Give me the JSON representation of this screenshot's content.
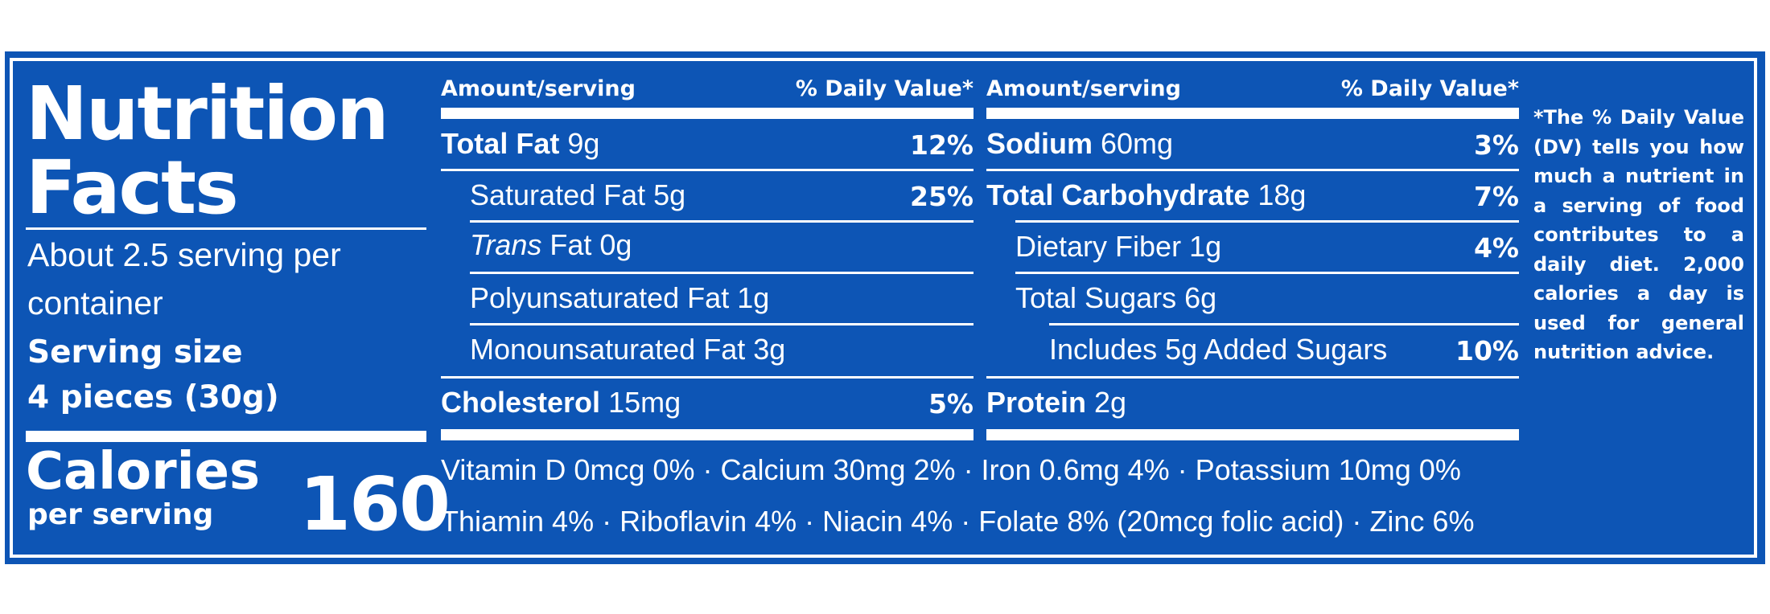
{
  "panel_color": "#0d55b5",
  "title": {
    "line1": "Nutrition",
    "line2": "Facts"
  },
  "servings": {
    "line1": "About 2.5 serving per",
    "line2": "container"
  },
  "serving_size": {
    "label": "Serving size",
    "value": "4 pieces (30g)"
  },
  "calories": {
    "label": "Calories",
    "sub": "per serving",
    "value": "160"
  },
  "column_headers": {
    "amount": "Amount/serving",
    "daily_value": "% Daily Value*"
  },
  "left_nutrients": [
    {
      "name": "Total Fat",
      "amount": "9g",
      "dv": "12%"
    },
    {
      "name": "Saturated Fat",
      "amount": "5g",
      "dv": "25%"
    },
    {
      "name": "Trans",
      "name_rest": "Fat 0g",
      "dv": ""
    },
    {
      "name": "Polyunsaturated Fat",
      "amount": "1g",
      "dv": ""
    },
    {
      "name": "Monounsaturated Fat",
      "amount": "3g",
      "dv": ""
    },
    {
      "name": "Cholesterol",
      "amount": "15mg",
      "dv": "5%"
    }
  ],
  "right_nutrients": [
    {
      "name": "Sodium",
      "amount": "60mg",
      "dv": "3%"
    },
    {
      "name": "Total Carbohydrate",
      "amount": "18g",
      "dv": "7%"
    },
    {
      "name": "Dietary Fiber",
      "amount": "1g",
      "dv": "4%"
    },
    {
      "name": "Total Sugars",
      "amount": "6g",
      "dv": ""
    },
    {
      "name": "Includes 5g Added Sugars",
      "amount": "",
      "dv": "10%"
    },
    {
      "name": "Protein",
      "amount": "2g",
      "dv": ""
    }
  ],
  "vitamins": {
    "line1": "Vitamin D 0mcg 0% · Calcium 30mg 2% · Iron 0.6mg 4% · Potassium 10mg 0%",
    "line2": "Thiamin 4% · Riboflavin 4% · Niacin 4% · Folate 8% (20mcg folic acid) · Zinc 6%"
  },
  "footnote": "*The % Daily Value (DV) tells you how much a nutrient in a serving of food contributes to a daily diet. 2,000 calories a day is used for general nutrition advice."
}
